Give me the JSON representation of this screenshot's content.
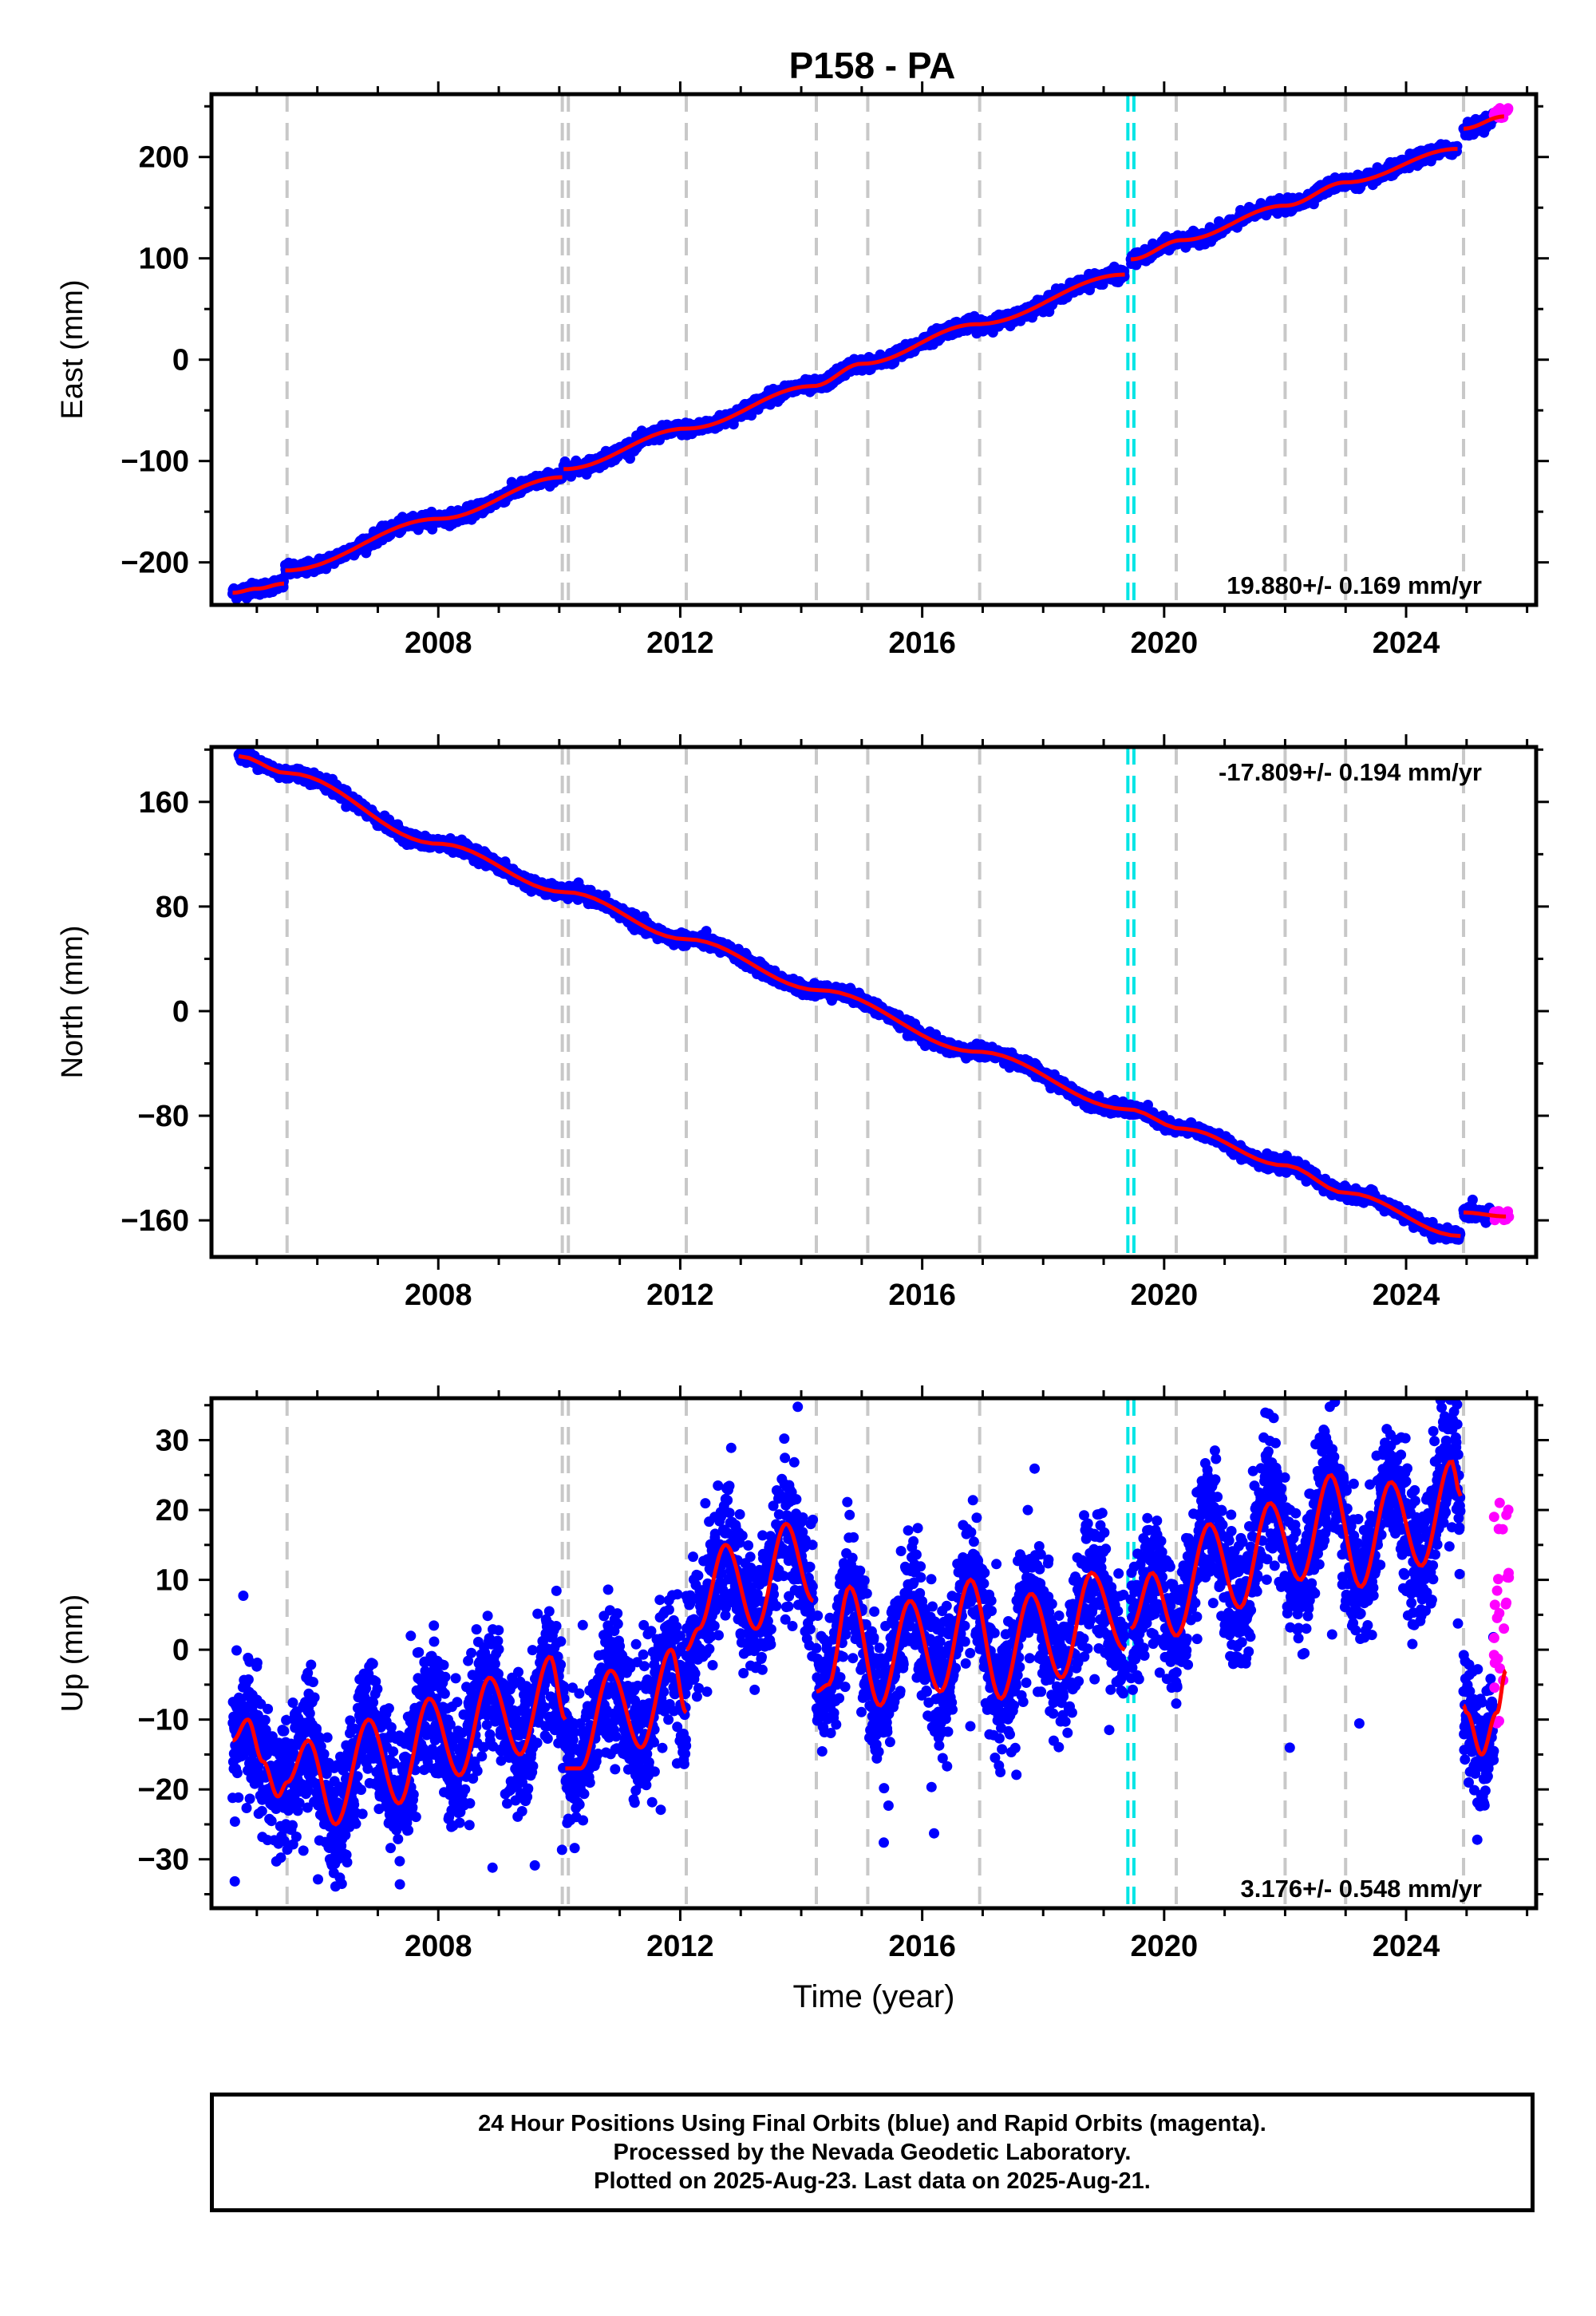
{
  "chart_data": [
    {
      "type": "scatter",
      "title": "P158 - PA",
      "ylabel": "East (mm)",
      "xlabel": "",
      "xlim": [
        2004.25,
        2026.15
      ],
      "ylim": [
        -242,
        262
      ],
      "xticks": [
        2008,
        2012,
        2016,
        2020,
        2024
      ],
      "xtick_labels": [
        "2008",
        "2012",
        "2016",
        "2020",
        "2024"
      ],
      "yticks": [
        -200,
        -100,
        0,
        100,
        200
      ],
      "ytick_labels": [
        "−200",
        "−100",
        "0",
        "100",
        "200"
      ],
      "rate_label": "19.880+/- 0.169 mm/yr",
      "rate_position": "bottom-right",
      "series": [
        {
          "color": "#0000ff",
          "marker": "dot"
        },
        {
          "color": "#ff00ff",
          "marker": "dot"
        },
        {
          "color": "#ff0000",
          "marker": "line"
        }
      ],
      "fit_segments": [
        {
          "x": [
            2004.6,
            2005.0,
            2005.45
          ],
          "y": [
            -230,
            -226,
            -221
          ]
        },
        {
          "x": [
            2005.47,
            2008.0,
            2010.05
          ],
          "y": [
            -208,
            -157,
            -116
          ]
        },
        {
          "x": [
            2010.07,
            2012.1,
            2014.2,
            2015.0,
            2016.9,
            2019.35
          ],
          "y": [
            -108,
            -68,
            -26,
            -4,
            35,
            84
          ]
        },
        {
          "x": [
            2019.45,
            2020.3,
            2022.0,
            2023.0,
            2024.85
          ],
          "y": [
            99,
            118,
            152,
            175,
            208
          ]
        },
        {
          "x": [
            2024.95,
            2025.62
          ],
          "y": [
            228,
            240
          ]
        }
      ],
      "rapid_orbit_x": [
        2025.45,
        2025.7
      ],
      "rapid_orbit_y": [
        238,
        250
      ],
      "gray_lines_x": [
        2005.5,
        2010.05,
        2010.15,
        2012.1,
        2014.25,
        2015.1,
        2016.95,
        2020.2,
        2022.0,
        2023.0,
        2024.95
      ],
      "cyan_lines_x": [
        2019.4,
        2019.5
      ]
    },
    {
      "type": "scatter",
      "title": "",
      "ylabel": "North (mm)",
      "xlabel": "",
      "xlim": [
        2004.25,
        2026.15
      ],
      "ylim": [
        -188,
        202
      ],
      "xticks": [
        2008,
        2012,
        2016,
        2020,
        2024
      ],
      "xtick_labels": [
        "2008",
        "2012",
        "2016",
        "2020",
        "2024"
      ],
      "yticks": [
        -160,
        -80,
        0,
        80,
        160
      ],
      "ytick_labels": [
        "−160",
        "−80",
        "0",
        "80",
        "160"
      ],
      "rate_label": "-17.809+/- 0.194 mm/yr",
      "rate_position": "top-right",
      "series": [
        {
          "color": "#0000ff",
          "marker": "dot"
        },
        {
          "color": "#ff00ff",
          "marker": "dot"
        },
        {
          "color": "#ff0000",
          "marker": "line"
        }
      ],
      "fit_segments": [
        {
          "x": [
            2004.7,
            2005.5,
            2008.0,
            2010.1,
            2012.1,
            2014.3,
            2016.9,
            2019.4,
            2020.3,
            2022.0,
            2023.0,
            2024.9
          ],
          "y": [
            195,
            182,
            128,
            91,
            55,
            16,
            -31,
            -75,
            -90,
            -118,
            -139,
            -172
          ]
        },
        {
          "x": [
            2024.95,
            2025.65
          ],
          "y": [
            -154,
            -157
          ]
        }
      ],
      "rapid_orbit_x": [
        2025.45,
        2025.7
      ],
      "rapid_orbit_y": [
        -160,
        -153
      ],
      "gray_lines_x": [
        2005.5,
        2010.05,
        2010.15,
        2012.1,
        2014.25,
        2015.1,
        2016.95,
        2020.2,
        2022.0,
        2023.0,
        2024.95
      ],
      "cyan_lines_x": [
        2019.4,
        2019.5
      ]
    },
    {
      "type": "scatter",
      "title": "",
      "ylabel": "Up (mm)",
      "xlabel": "Time (year)",
      "xlim": [
        2004.25,
        2026.15
      ],
      "ylim": [
        -37,
        36
      ],
      "xticks": [
        2008,
        2012,
        2016,
        2020,
        2024
      ],
      "xtick_labels": [
        "2008",
        "2012",
        "2016",
        "2020",
        "2024"
      ],
      "yticks": [
        -30,
        -20,
        -10,
        0,
        10,
        20,
        30
      ],
      "ytick_labels": [
        "−30",
        "−20",
        "−10",
        "0",
        "10",
        "20",
        "30"
      ],
      "rate_label": "3.176+/- 0.548 mm/yr",
      "rate_position": "bottom-right",
      "series": [
        {
          "color": "#0000ff",
          "marker": "dot"
        },
        {
          "color": "#ff00ff",
          "marker": "dot"
        },
        {
          "color": "#ff0000",
          "marker": "line"
        }
      ],
      "fit_segments": [
        {
          "x": [
            2004.6,
            2004.85,
            2005.1,
            2005.35,
            2005.5
          ],
          "y": [
            -13,
            -10,
            -16,
            -21,
            -19
          ]
        },
        {
          "x": [
            2005.5,
            2005.85,
            2006.3,
            2006.85,
            2007.35,
            2007.85,
            2008.35,
            2008.85,
            2009.35,
            2009.85,
            2010.1
          ],
          "y": [
            -19,
            -13,
            -25,
            -10,
            -22,
            -7,
            -18,
            -4,
            -15,
            -1,
            -10
          ]
        },
        {
          "x": [
            2010.1,
            2010.35,
            2010.85,
            2011.35,
            2011.85,
            2012.1
          ],
          "y": [
            -17,
            -17,
            -3,
            -14,
            0,
            -9
          ]
        },
        {
          "x": [
            2012.1,
            2012.3,
            2012.75,
            2013.25,
            2013.75,
            2014.2
          ],
          "y": [
            0,
            3,
            15,
            3,
            18,
            7
          ]
        },
        {
          "x": [
            2014.25,
            2014.45,
            2014.8,
            2015.3,
            2015.8,
            2016.3,
            2016.8,
            2017.3,
            2017.8,
            2018.3,
            2018.8,
            2019.35
          ],
          "y": [
            -6,
            -5,
            9,
            -8,
            7,
            -6,
            10,
            -7,
            8,
            -4,
            11,
            0
          ]
        },
        {
          "x": [
            2019.45,
            2019.8,
            2020.2,
            2020.75,
            2021.25,
            2021.75,
            2022.25,
            2022.75,
            2023.25,
            2023.75,
            2024.25,
            2024.75,
            2024.9
          ],
          "y": [
            3,
            11,
            2,
            18,
            6,
            21,
            10,
            25,
            9,
            24,
            12,
            27,
            22
          ]
        },
        {
          "x": [
            2024.95,
            2025.0,
            2025.25,
            2025.5,
            2025.65
          ],
          "y": [
            -8,
            -9,
            -15,
            -9,
            -3
          ]
        }
      ],
      "rapid_orbit_x": [
        2025.45,
        2025.7
      ],
      "rapid_orbit_y": [
        -12,
        23
      ],
      "gray_lines_x": [
        2005.5,
        2010.05,
        2010.15,
        2012.1,
        2014.25,
        2015.1,
        2016.95,
        2020.2,
        2022.0,
        2023.0,
        2024.95
      ],
      "cyan_lines_x": [
        2019.4,
        2019.5
      ]
    }
  ],
  "footer": {
    "line1": "24 Hour Positions Using Final Orbits (blue) and Rapid Orbits (magenta).",
    "line2": "Processed by the Nevada Geodetic Laboratory.",
    "line3": "Plotted on 2025-Aug-23. Last data on 2025-Aug-21."
  }
}
